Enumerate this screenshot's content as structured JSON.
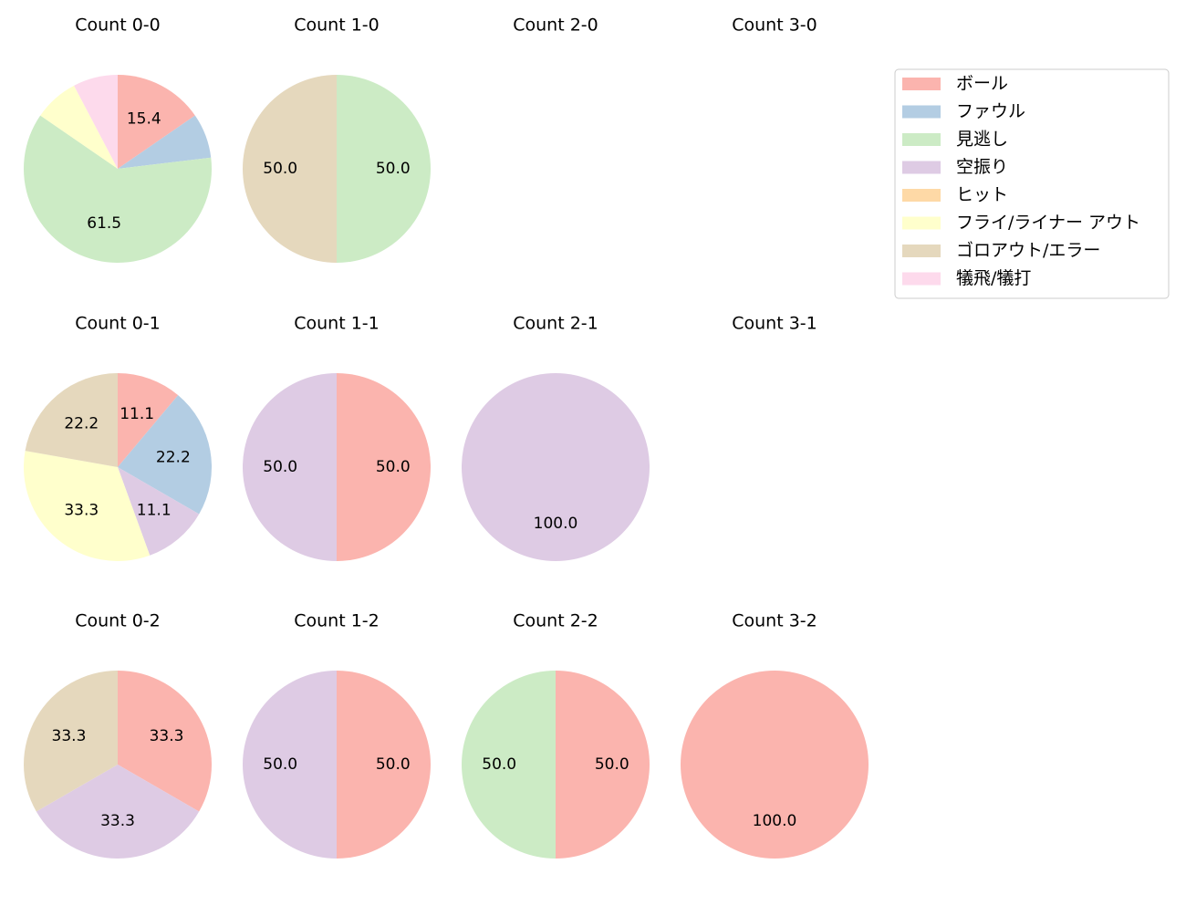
{
  "chart_data": [
    {
      "type": "pie",
      "title": "Count 0-0",
      "categories": [
        "ボール",
        "ファウル",
        "見逃し",
        "フライ/ライナー アウト",
        "犠飛/犠打"
      ],
      "values": [
        15.4,
        7.7,
        61.5,
        7.7,
        7.7
      ],
      "value_labels": [
        "15.4",
        null,
        "61.5",
        null,
        null
      ]
    },
    {
      "type": "pie",
      "title": "Count 1-0",
      "categories": [
        "見逃し",
        "ゴロアウト/エラー"
      ],
      "values": [
        50,
        50
      ],
      "value_labels": [
        "50.0",
        "50.0"
      ]
    },
    {
      "type": "pie",
      "title": "Count 2-0",
      "categories": [],
      "values": [],
      "value_labels": []
    },
    {
      "type": "pie",
      "title": "Count 3-0",
      "categories": [],
      "values": [],
      "value_labels": []
    },
    {
      "type": "pie",
      "title": "Count 0-1",
      "categories": [
        "ボール",
        "ファウル",
        "空振り",
        "フライ/ライナー アウト",
        "ゴロアウト/エラー"
      ],
      "values": [
        11.1,
        22.2,
        11.1,
        33.3,
        22.2
      ],
      "value_labels": [
        "11.1",
        "22.2",
        "11.1",
        "33.3",
        "22.2"
      ]
    },
    {
      "type": "pie",
      "title": "Count 1-1",
      "categories": [
        "ボール",
        "空振り"
      ],
      "values": [
        50,
        50
      ],
      "value_labels": [
        "50.0",
        "50.0"
      ]
    },
    {
      "type": "pie",
      "title": "Count 2-1",
      "categories": [
        "空振り"
      ],
      "values": [
        100
      ],
      "value_labels": [
        "100.0"
      ]
    },
    {
      "type": "pie",
      "title": "Count 3-1",
      "categories": [],
      "values": [],
      "value_labels": []
    },
    {
      "type": "pie",
      "title": "Count 0-2",
      "categories": [
        "ボール",
        "空振り",
        "ゴロアウト/エラー"
      ],
      "values": [
        33.3,
        33.3,
        33.3
      ],
      "value_labels": [
        "33.3",
        "33.3",
        "33.3"
      ]
    },
    {
      "type": "pie",
      "title": "Count 1-2",
      "categories": [
        "ボール",
        "空振り"
      ],
      "values": [
        50,
        50
      ],
      "value_labels": [
        "50.0",
        "50.0"
      ]
    },
    {
      "type": "pie",
      "title": "Count 2-2",
      "categories": [
        "ボール",
        "見逃し"
      ],
      "values": [
        50,
        50
      ],
      "value_labels": [
        "50.0",
        "50.0"
      ]
    },
    {
      "type": "pie",
      "title": "Count 3-2",
      "categories": [
        "ボール"
      ],
      "values": [
        100
      ],
      "value_labels": [
        "100.0"
      ]
    }
  ],
  "legend": {
    "position": "upper right",
    "labels": [
      "ボール",
      "ファウル",
      "見逃し",
      "空振り",
      "ヒット",
      "フライ/ライナー アウト",
      "ゴロアウト/エラー",
      "犠飛/犠打"
    ],
    "colors": [
      "#fbb4ae",
      "#b3cde3",
      "#ccebc5",
      "#decbe4",
      "#fed9a6",
      "#ffffcc",
      "#e5d8bd",
      "#fddaec"
    ]
  }
}
